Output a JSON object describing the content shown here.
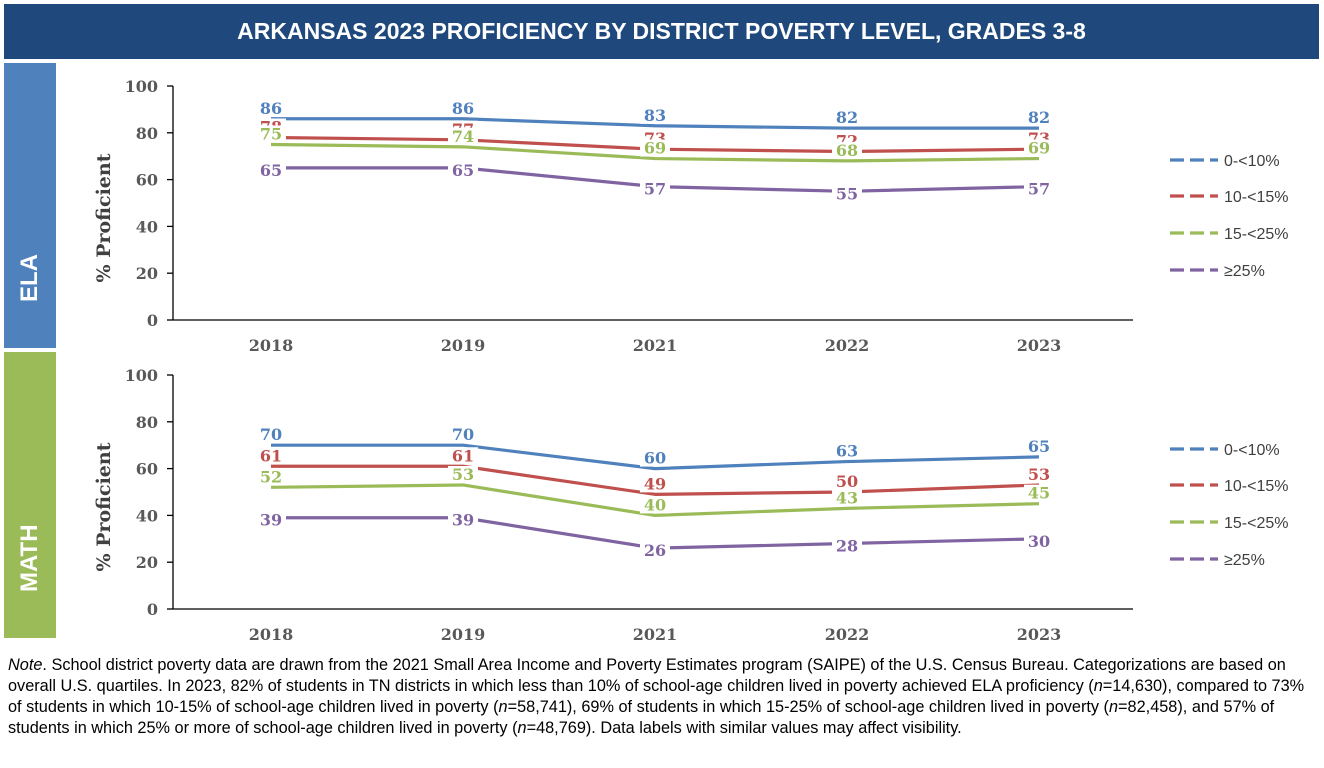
{
  "title": "ARKANSAS 2023 PROFICIENCY BY DISTRICT POVERTY LEVEL, GRADES 3-8",
  "colors": {
    "title_bg": "#1f497d",
    "ela_band": "#4f81bd",
    "math_band": "#9bbb59"
  },
  "chart_data": [
    {
      "type": "line",
      "panel_label": "ELA",
      "ylabel": "% Proficient",
      "categories": [
        "2018",
        "2019",
        "2021",
        "2022",
        "2023"
      ],
      "ylim": [
        0,
        100
      ],
      "yticks": [
        "0",
        "20",
        "40",
        "60",
        "80",
        "100"
      ],
      "legend_position": "right",
      "series": [
        {
          "name": "0-<10%",
          "color": "#4f81bd",
          "values": [
            86,
            86,
            83,
            82,
            82
          ]
        },
        {
          "name": "10-<15%",
          "color": "#c0504d",
          "values": [
            78,
            77,
            73,
            72,
            73
          ]
        },
        {
          "name": "15-<25%",
          "color": "#9bbb59",
          "values": [
            75,
            74,
            69,
            68,
            69
          ]
        },
        {
          "name": "≥25%",
          "color": "#8064a2",
          "values": [
            65,
            65,
            57,
            55,
            57
          ]
        }
      ]
    },
    {
      "type": "line",
      "panel_label": "MATH",
      "ylabel": "% Proficient",
      "categories": [
        "2018",
        "2019",
        "2021",
        "2022",
        "2023"
      ],
      "ylim": [
        0,
        100
      ],
      "yticks": [
        "0",
        "20",
        "40",
        "60",
        "80",
        "100"
      ],
      "legend_position": "right",
      "series": [
        {
          "name": "0-<10%",
          "color": "#4f81bd",
          "values": [
            70,
            70,
            60,
            63,
            65
          ]
        },
        {
          "name": "10-<15%",
          "color": "#c0504d",
          "values": [
            61,
            61,
            49,
            50,
            53
          ]
        },
        {
          "name": "15-<25%",
          "color": "#9bbb59",
          "values": [
            52,
            53,
            40,
            43,
            45
          ]
        },
        {
          "name": "≥25%",
          "color": "#8064a2",
          "values": [
            39,
            39,
            26,
            28,
            30
          ]
        }
      ]
    }
  ],
  "note": {
    "label": "Note",
    "segments": [
      ". School district poverty data are drawn from the 2021 Small Area Income and Poverty Estimates program (SAIPE) of the U.S. Census Bureau. Categorizations are based on overall U.S. quartiles. In 2023, 82% of students in TN districts in which less than 10% of school-age children lived in poverty achieved ELA proficiency (",
      "=14,630), compared to 73% of students in which 10-15% of school-age children lived in poverty (",
      "=58,741), 69% of students in which 15-25% of school-age children lived in poverty (",
      "=82,458), and 57% of students in which 25% or more of school-age children lived in poverty (",
      "=48,769). Data labels with similar values may affect visibility."
    ],
    "n_symbol": "n"
  }
}
